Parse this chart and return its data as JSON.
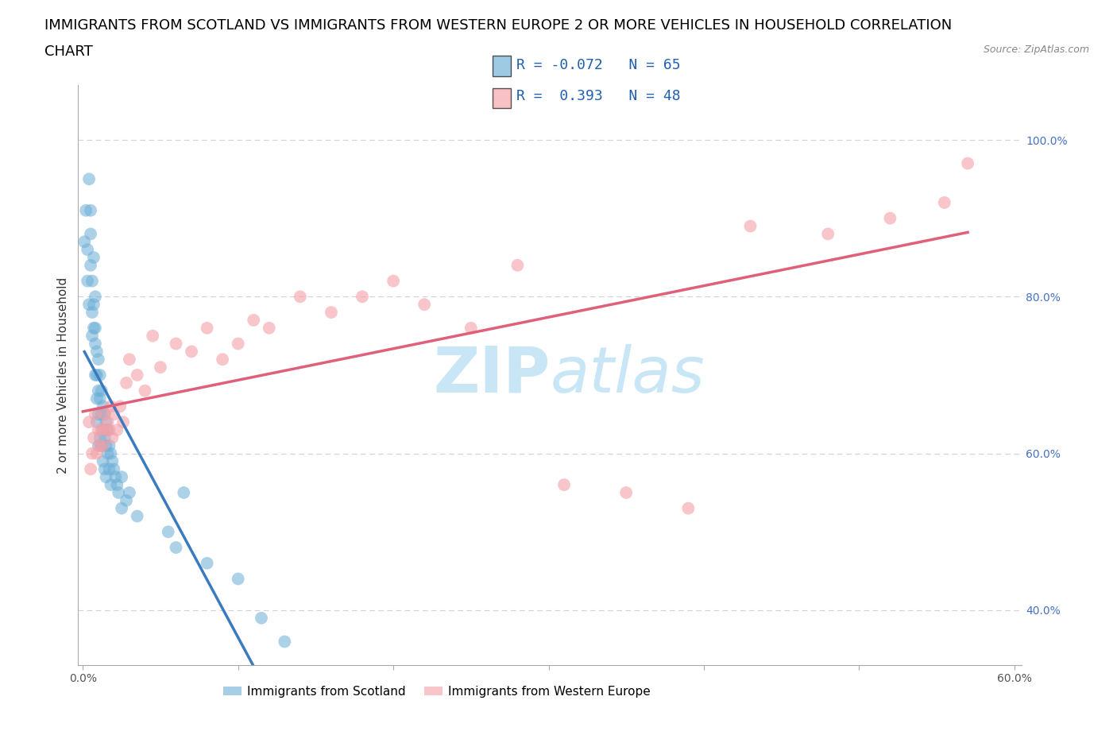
{
  "title_line1": "IMMIGRANTS FROM SCOTLAND VS IMMIGRANTS FROM WESTERN EUROPE 2 OR MORE VEHICLES IN HOUSEHOLD CORRELATION",
  "title_line2": "CHART",
  "source": "Source: ZipAtlas.com",
  "ylabel": "2 or more Vehicles in Household",
  "xlim": [
    -0.003,
    0.605
  ],
  "ylim": [
    0.33,
    1.07
  ],
  "dashed_yvals": [
    0.4,
    0.6,
    0.8,
    1.0
  ],
  "ytick_right_labels": [
    "40.0%",
    "60.0%",
    "80.0%",
    "100.0%"
  ],
  "scotland_color": "#6baed6",
  "scotland_line_color": "#3a7bbf",
  "western_color": "#f4a0a8",
  "western_line_color": "#e0607a",
  "background_color": "#ffffff",
  "grid_color": "#cccccc",
  "watermark_color": "#c8e6f5",
  "title_fontsize": 13,
  "axis_label_fontsize": 11,
  "tick_fontsize": 10,
  "legend_fontsize": 13,
  "source_fontsize": 9,
  "scotland_x": [
    0.001,
    0.002,
    0.003,
    0.003,
    0.004,
    0.004,
    0.005,
    0.005,
    0.005,
    0.006,
    0.006,
    0.006,
    0.007,
    0.007,
    0.007,
    0.008,
    0.008,
    0.008,
    0.008,
    0.009,
    0.009,
    0.009,
    0.009,
    0.01,
    0.01,
    0.01,
    0.01,
    0.011,
    0.011,
    0.011,
    0.012,
    0.012,
    0.012,
    0.013,
    0.013,
    0.013,
    0.014,
    0.014,
    0.014,
    0.015,
    0.015,
    0.015,
    0.016,
    0.016,
    0.017,
    0.017,
    0.018,
    0.018,
    0.019,
    0.02,
    0.021,
    0.022,
    0.023,
    0.025,
    0.025,
    0.028,
    0.03,
    0.035,
    0.055,
    0.06,
    0.065,
    0.08,
    0.1,
    0.115,
    0.13
  ],
  "scotland_y": [
    0.87,
    0.91,
    0.82,
    0.86,
    0.79,
    0.95,
    0.91,
    0.88,
    0.84,
    0.82,
    0.78,
    0.75,
    0.85,
    0.79,
    0.76,
    0.8,
    0.76,
    0.74,
    0.7,
    0.73,
    0.7,
    0.67,
    0.64,
    0.72,
    0.68,
    0.65,
    0.61,
    0.7,
    0.67,
    0.62,
    0.68,
    0.65,
    0.61,
    0.66,
    0.63,
    0.59,
    0.65,
    0.62,
    0.58,
    0.64,
    0.61,
    0.57,
    0.63,
    0.6,
    0.61,
    0.58,
    0.6,
    0.56,
    0.59,
    0.58,
    0.57,
    0.56,
    0.55,
    0.57,
    0.53,
    0.54,
    0.55,
    0.52,
    0.5,
    0.48,
    0.55,
    0.46,
    0.44,
    0.39,
    0.36
  ],
  "western_x": [
    0.004,
    0.005,
    0.006,
    0.007,
    0.008,
    0.009,
    0.01,
    0.011,
    0.012,
    0.013,
    0.014,
    0.015,
    0.016,
    0.017,
    0.018,
    0.019,
    0.02,
    0.022,
    0.024,
    0.026,
    0.028,
    0.03,
    0.035,
    0.04,
    0.045,
    0.05,
    0.06,
    0.07,
    0.08,
    0.09,
    0.1,
    0.11,
    0.12,
    0.14,
    0.16,
    0.18,
    0.2,
    0.22,
    0.25,
    0.28,
    0.31,
    0.35,
    0.39,
    0.43,
    0.48,
    0.52,
    0.555,
    0.57
  ],
  "western_y": [
    0.64,
    0.58,
    0.6,
    0.62,
    0.65,
    0.6,
    0.63,
    0.61,
    0.63,
    0.61,
    0.65,
    0.63,
    0.64,
    0.63,
    0.66,
    0.62,
    0.65,
    0.63,
    0.66,
    0.64,
    0.69,
    0.72,
    0.7,
    0.68,
    0.75,
    0.71,
    0.74,
    0.73,
    0.76,
    0.72,
    0.74,
    0.77,
    0.76,
    0.8,
    0.78,
    0.8,
    0.82,
    0.79,
    0.76,
    0.84,
    0.56,
    0.55,
    0.53,
    0.89,
    0.88,
    0.9,
    0.92,
    0.97
  ],
  "legend_items": [
    {
      "color": "#6baed6",
      "text": "R = -0.072   N = 65"
    },
    {
      "color": "#f4a0a8",
      "text": "R =  0.393   N = 48"
    }
  ],
  "bottom_legend": [
    {
      "color": "#6baed6",
      "label": "Immigrants from Scotland"
    },
    {
      "color": "#f4a0a8",
      "label": "Immigrants from Western Europe"
    }
  ]
}
